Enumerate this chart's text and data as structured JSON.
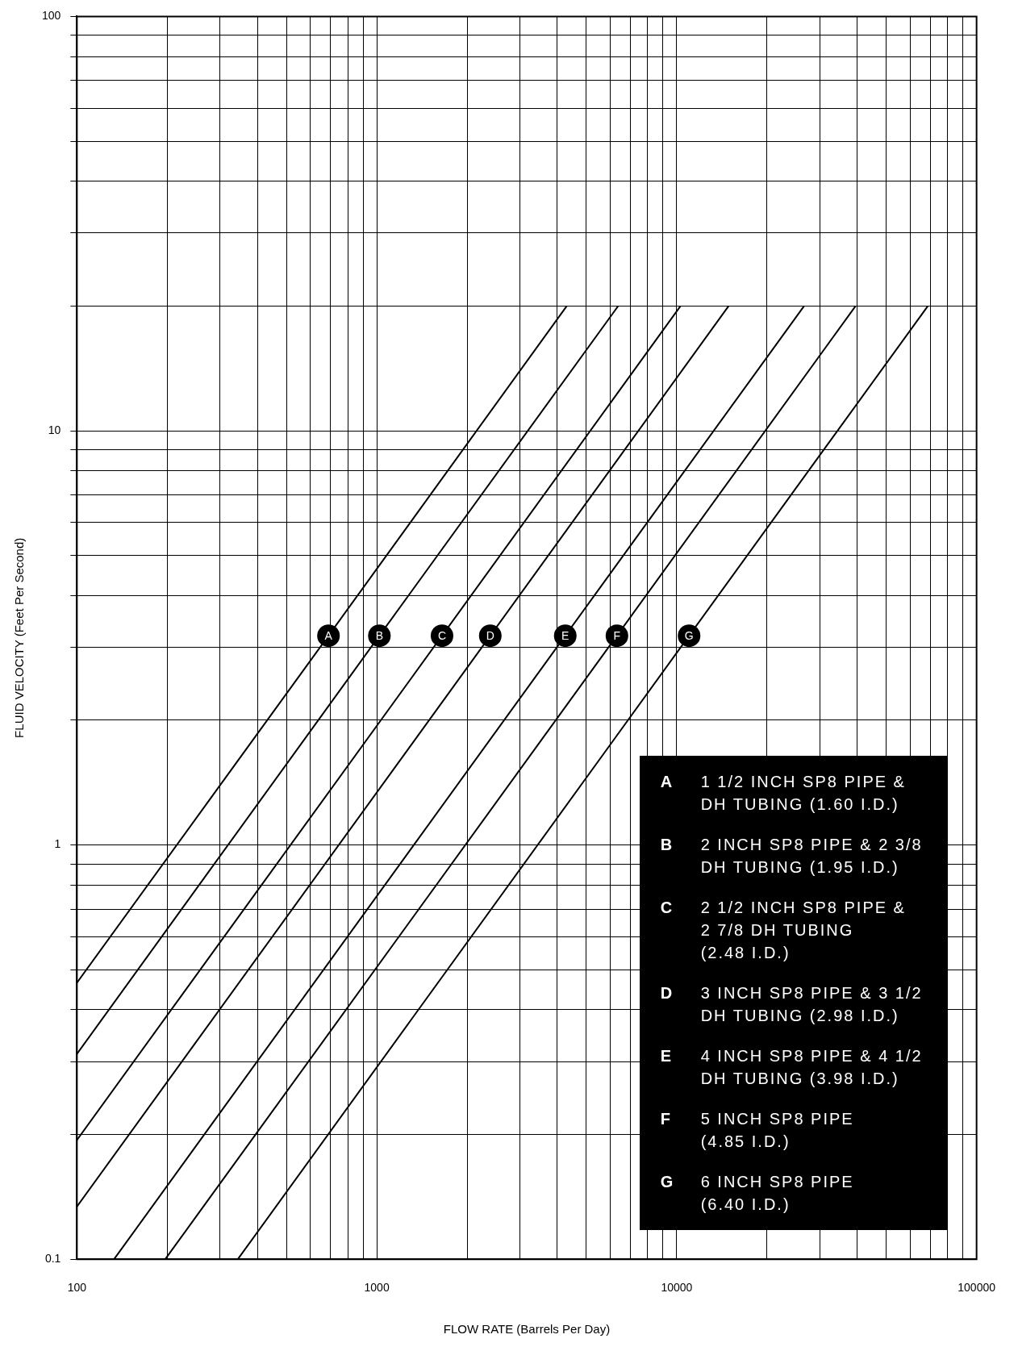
{
  "chart_data": {
    "type": "line",
    "xlabel": "FLOW RATE (Barrels Per Day)",
    "ylabel": "FLUID VELOCITY (Feet Per Second)",
    "log": "xy",
    "grid": true,
    "marker": "none",
    "line_style": "solid",
    "xlim": [
      100,
      100000
    ],
    "ylim": [
      0.1,
      100
    ],
    "xticks": [
      100,
      {
        "value": 200,
        "label": null
      },
      {
        "value": 300,
        "label": null
      },
      {
        "value": 400,
        "label": null
      },
      {
        "value": 500,
        "label": null
      },
      {
        "value": 600,
        "label": null
      },
      {
        "value": 700,
        "label": null
      },
      {
        "value": 800,
        "label": null
      },
      {
        "value": 900,
        "label": null
      },
      1000,
      {
        "value": 2000,
        "label": null
      },
      {
        "value": 3000,
        "label": null
      },
      {
        "value": 4000,
        "label": null
      },
      {
        "value": 5000,
        "label": null
      },
      {
        "value": 6000,
        "label": null
      },
      {
        "value": 7000,
        "label": null
      },
      {
        "value": 8000,
        "label": null
      },
      {
        "value": 9000,
        "label": null
      },
      10000,
      {
        "value": 20000,
        "label": null
      },
      {
        "value": 30000,
        "label": null
      },
      {
        "value": 40000,
        "label": null
      },
      {
        "value": 50000,
        "label": null
      },
      {
        "value": 60000,
        "label": null
      },
      {
        "value": 70000,
        "label": null
      },
      {
        "value": 80000,
        "label": null
      },
      {
        "value": 90000,
        "label": null
      },
      100000
    ],
    "yticks": [
      0.1,
      {
        "value": 0.2,
        "label": null
      },
      {
        "value": 0.3,
        "label": null
      },
      {
        "value": 0.4,
        "label": null
      },
      {
        "value": 0.5,
        "label": null
      },
      {
        "value": 0.6,
        "label": null
      },
      {
        "value": 0.7,
        "label": null
      },
      {
        "value": 0.8,
        "label": null
      },
      {
        "value": 0.9,
        "label": null
      },
      1,
      {
        "value": 2,
        "label": null
      },
      {
        "value": 3,
        "label": null
      },
      {
        "value": 4,
        "label": null
      },
      {
        "value": 5,
        "label": null
      },
      {
        "value": 6,
        "label": null
      },
      {
        "value": 7,
        "label": null
      },
      {
        "value": 8,
        "label": null
      },
      {
        "value": 9,
        "label": null
      },
      10,
      {
        "value": 20,
        "label": null
      },
      {
        "value": 30,
        "label": null
      },
      {
        "value": 40,
        "label": null
      },
      {
        "value": 50,
        "label": null
      },
      {
        "value": 60,
        "label": null
      },
      {
        "value": 70,
        "label": null
      },
      {
        "value": 80,
        "label": null
      },
      {
        "value": 90,
        "label": null
      },
      100
    ],
    "series": [
      {
        "name": "A",
        "color": "#000000",
        "x": [
          100,
          690,
          4300
        ],
        "values": [
          0.465,
          3.2,
          20
        ]
      },
      {
        "name": "B",
        "color": "#000000",
        "x": [
          100,
          1020,
          6380
        ],
        "values": [
          0.313,
          3.2,
          20
        ]
      },
      {
        "name": "C",
        "color": "#000000",
        "x": [
          100,
          1650,
          10300
        ],
        "values": [
          0.194,
          3.2,
          20
        ]
      },
      {
        "name": "D",
        "color": "#000000",
        "x": [
          100,
          2390,
          14900
        ],
        "values": [
          0.134,
          3.2,
          20
        ]
      },
      {
        "name": "E",
        "color": "#000000",
        "x": [
          133,
          4250,
          26600
        ],
        "values": [
          0.1,
          3.2,
          20
        ]
      },
      {
        "name": "F",
        "color": "#000000",
        "x": [
          197,
          6320,
          39500
        ],
        "values": [
          0.1,
          3.2,
          20
        ]
      },
      {
        "name": "G",
        "color": "#000000",
        "x": [
          344,
          11000,
          68800
        ],
        "values": [
          0.1,
          3.2,
          20
        ]
      }
    ],
    "annotations": [
      "1 1/2 INCH SP8 PIPE &\nDH TUBING (1.60 I.D.)",
      "2 INCH SP8 PIPE & 2 3/8\nDH TUBING (1.95 I.D.)",
      "2 1/2 INCH SP8 PIPE &\n2 7/8  DH TUBING\n(2.48 I.D.)",
      "3 INCH SP8 PIPE & 3 1/2\nDH TUBING (2.98 I.D.)",
      "4 INCH SP8 PIPE & 4 1/2\nDH TUBING (3.98 I.D.)",
      "5 INCH SP8 PIPE\n(4.85 I.D.)",
      "6 INCH SP8 PIPE\n(6.40 I.D.)"
    ]
  }
}
